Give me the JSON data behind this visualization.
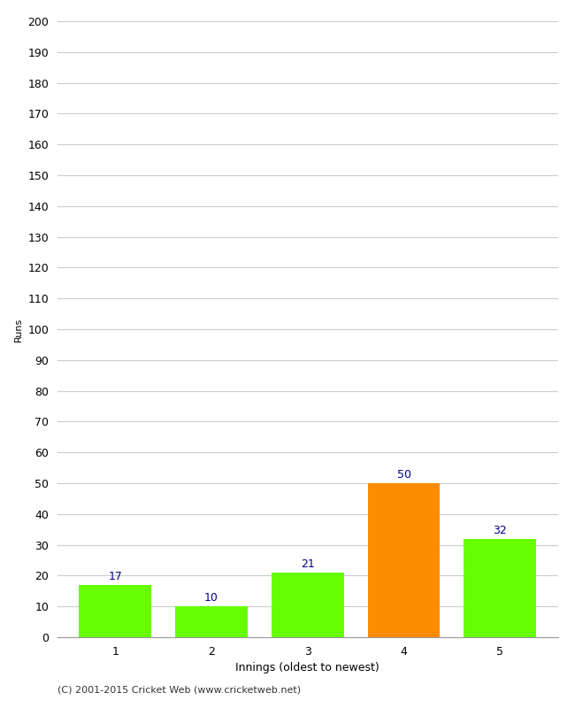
{
  "categories": [
    "1",
    "2",
    "3",
    "4",
    "5"
  ],
  "values": [
    17,
    10,
    21,
    50,
    32
  ],
  "bar_colors": [
    "#66ff00",
    "#66ff00",
    "#66ff00",
    "#ff8c00",
    "#66ff00"
  ],
  "xlabel": "Innings (oldest to newest)",
  "ylabel": "Runs",
  "ylim": [
    0,
    200
  ],
  "yticks": [
    0,
    10,
    20,
    30,
    40,
    50,
    60,
    70,
    80,
    90,
    100,
    110,
    120,
    130,
    140,
    150,
    160,
    170,
    180,
    190,
    200
  ],
  "label_color": "#00008b",
  "label_fontsize": 9,
  "axis_fontsize": 9,
  "ylabel_fontsize": 8,
  "xlabel_fontsize": 9,
  "footer_text": "(C) 2001-2015 Cricket Web (www.cricketweb.net)",
  "footer_fontsize": 8,
  "background_color": "#ffffff",
  "grid_color": "#cccccc",
  "bar_width": 0.75
}
